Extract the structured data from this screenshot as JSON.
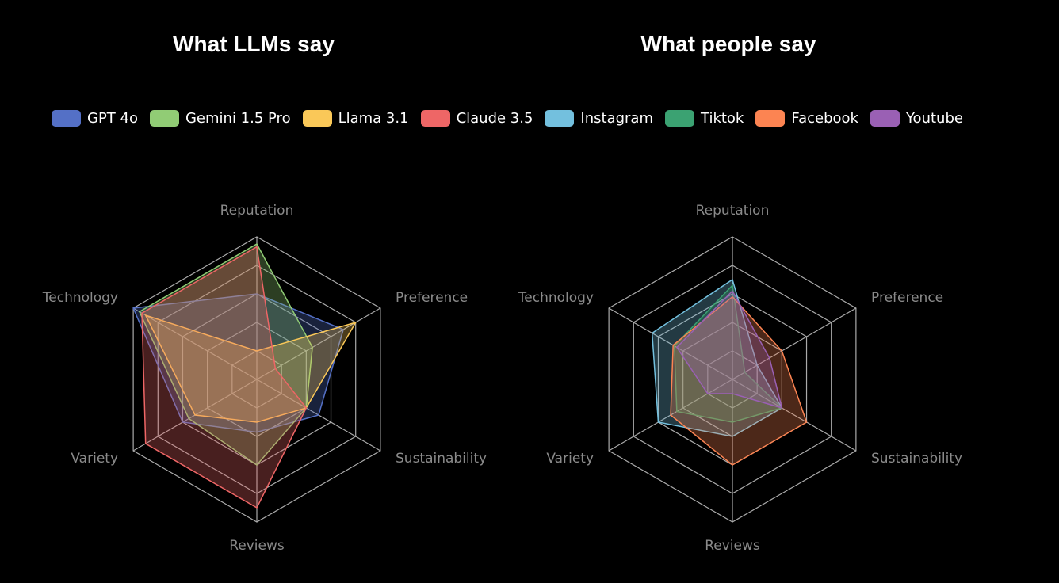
{
  "titles": {
    "left": "What LLMs say",
    "right": "What people say"
  },
  "legend": [
    {
      "name": "GPT 4o",
      "color": "#5470c6"
    },
    {
      "name": "Gemini 1.5 Pro",
      "color": "#91cc75"
    },
    {
      "name": "Llama 3.1",
      "color": "#fac858"
    },
    {
      "name": "Claude 3.5",
      "color": "#ee6666"
    },
    {
      "name": "Instagram",
      "color": "#73c0de"
    },
    {
      "name": "Tiktok",
      "color": "#3ba272"
    },
    {
      "name": "Facebook",
      "color": "#fc8452"
    },
    {
      "name": "Youtube",
      "color": "#9a60b4"
    }
  ],
  "chart_data": [
    {
      "type": "radar",
      "title": "What LLMs say",
      "indicators": [
        "Reputation",
        "Preference",
        "Sustainability",
        "Reviews",
        "Variety",
        "Technology"
      ],
      "max": 100,
      "series": [
        {
          "name": "GPT 4o",
          "color": "#5470c6",
          "values": [
            60,
            70,
            50,
            37,
            60,
            100
          ]
        },
        {
          "name": "Gemini 1.5 Pro",
          "color": "#91cc75",
          "values": [
            95,
            45,
            40,
            60,
            55,
            95
          ]
        },
        {
          "name": "Llama 3.1",
          "color": "#fac858",
          "values": [
            20,
            80,
            40,
            30,
            50,
            90
          ]
        },
        {
          "name": "Claude 3.5",
          "color": "#ee6666",
          "values": [
            93,
            15,
            40,
            90,
            90,
            93
          ]
        }
      ]
    },
    {
      "type": "radar",
      "title": "What people say",
      "indicators": [
        "Reputation",
        "Preference",
        "Sustainability",
        "Reviews",
        "Variety",
        "Technology"
      ],
      "max": 100,
      "series": [
        {
          "name": "Instagram",
          "color": "#73c0de",
          "values": [
            70,
            20,
            40,
            40,
            60,
            65
          ]
        },
        {
          "name": "Tiktok",
          "color": "#3ba272",
          "values": [
            66,
            10,
            40,
            30,
            45,
            47
          ]
        },
        {
          "name": "Facebook",
          "color": "#fc8452",
          "values": [
            58,
            40,
            60,
            60,
            50,
            48
          ]
        },
        {
          "name": "Youtube",
          "color": "#9a60b4",
          "values": [
            62,
            30,
            40,
            10,
            20,
            45
          ]
        }
      ]
    }
  ]
}
